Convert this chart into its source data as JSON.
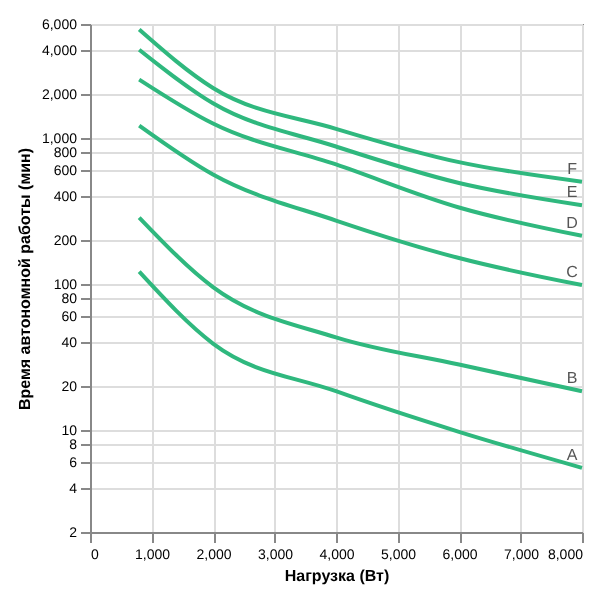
{
  "chart_data": {
    "type": "line",
    "xlabel": "Нагрузка (Вт)",
    "ylabel": "Время автономной работы (мин)",
    "x": [
      800,
      2000,
      4000,
      6000,
      8000
    ],
    "series": [
      {
        "name": "A",
        "color": "#2fb87e",
        "values": [
          121,
          39,
          18.4,
          9.7,
          5.5
        ]
      },
      {
        "name": "B",
        "color": "#2fb87e",
        "values": [
          284,
          95,
          43,
          28,
          18.4
        ]
      },
      {
        "name": "C",
        "color": "#2fb87e",
        "values": [
          1210,
          560,
          271,
          150,
          98
        ]
      },
      {
        "name": "D",
        "color": "#2fb87e",
        "values": [
          2500,
          1250,
          656,
          333,
          213
        ]
      },
      {
        "name": "E",
        "color": "#2fb87e",
        "values": [
          4000,
          1720,
          870,
          490,
          345
        ]
      },
      {
        "name": "F",
        "color": "#2fb87e",
        "values": [
          5500,
          2190,
          1150,
          680,
          500
        ]
      }
    ],
    "xlim": [
      0,
      8000
    ],
    "xticks": [
      0,
      {
        "value": 1000,
        "label": "1,000"
      },
      {
        "value": 2000,
        "label": "2,000"
      },
      {
        "value": 3000,
        "label": "3,000"
      },
      {
        "value": 4000,
        "label": "4,000"
      },
      {
        "value": 5000,
        "label": "5,000"
      },
      {
        "value": 6000,
        "label": "6,000"
      },
      {
        "value": 7000,
        "label": "7,000"
      },
      {
        "value": 8000,
        "label": "8,000"
      }
    ],
    "ylim": [
      2,
      6000
    ],
    "yticks": [
      2,
      4,
      6,
      8,
      10,
      20,
      40,
      60,
      80,
      100,
      200,
      400,
      600,
      800,
      {
        "value": 1000,
        "label": "1,000"
      },
      {
        "value": 2000,
        "label": "2,000"
      },
      {
        "value": 4000,
        "label": "4,000"
      },
      {
        "value": 6000,
        "label": "6,000"
      }
    ],
    "log": "y",
    "grid": true,
    "marker": "none",
    "line_style": "solid"
  }
}
